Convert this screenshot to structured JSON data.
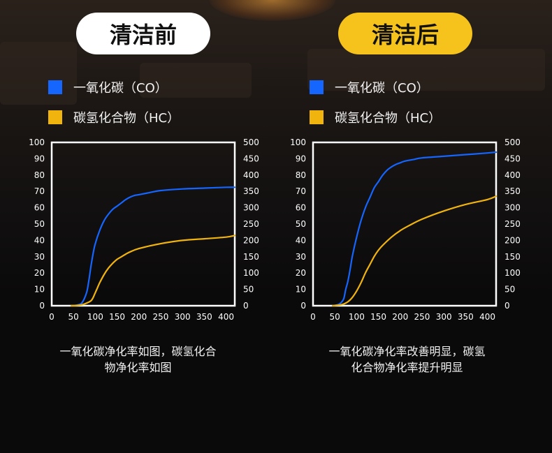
{
  "colors": {
    "co": "#1565ff",
    "hc": "#f1b40f",
    "before_pill": "#ffffff",
    "after_pill": "#f6c31d"
  },
  "panels": [
    {
      "badge": "清洁前",
      "legend": {
        "co": "一氧化碳（CO）",
        "hc": "碳氢化合物（HC）"
      },
      "caption": {
        "line1": "一氧化碳净化率如图，碳氢化合",
        "line2": "物净化率如图"
      }
    },
    {
      "badge": "清洁后",
      "legend": {
        "co": "一氧化碳（CO）",
        "hc": "碳氢化合物（HC）"
      },
      "caption": {
        "line1": "一氧化碳净化率改善明显，碳氢",
        "line2": "化合物净化率提升明显"
      }
    }
  ],
  "chart_data": [
    {
      "type": "line",
      "xlim": [
        0,
        420
      ],
      "x_ticks": [
        "0",
        "50",
        "100",
        "150",
        "200",
        "250",
        "300",
        "350",
        "400"
      ],
      "ylim": [
        0,
        100
      ],
      "y_ticks": [
        "0",
        "10",
        "20",
        "30",
        "40",
        "50",
        "60",
        "70",
        "80",
        "90",
        "100"
      ],
      "y2lim": [
        0,
        500
      ],
      "y2_ticks": [
        "0",
        "50",
        "100",
        "150",
        "200",
        "250",
        "300",
        "350",
        "400",
        "450",
        "500"
      ],
      "grid": false,
      "series": [
        {
          "name": "一氧化碳（CO）",
          "axis": "left",
          "x": [
            45,
            60,
            70,
            80,
            85,
            90,
            95,
            100,
            110,
            120,
            130,
            140,
            150,
            160,
            170,
            180,
            190,
            200,
            220,
            250,
            300,
            350,
            400,
            420
          ],
          "y": [
            0,
            0.5,
            2,
            8,
            15,
            24,
            32,
            38,
            46,
            52,
            56,
            59,
            61,
            63,
            65,
            66.5,
            67.5,
            68,
            69,
            70.5,
            71.5,
            72,
            72.5,
            72.5
          ]
        },
        {
          "name": "碳氢化合物（HC）",
          "axis": "right",
          "x": [
            45,
            60,
            70,
            80,
            90,
            95,
            100,
            105,
            110,
            120,
            130,
            140,
            150,
            160,
            170,
            180,
            200,
            250,
            300,
            350,
            400,
            420
          ],
          "y": [
            0,
            1,
            3,
            8,
            15,
            25,
            40,
            55,
            70,
            95,
            115,
            130,
            142,
            150,
            158,
            165,
            175,
            190,
            200,
            205,
            210,
            215
          ]
        }
      ]
    },
    {
      "type": "line",
      "xlim": [
        0,
        420
      ],
      "x_ticks": [
        "0",
        "50",
        "100",
        "150",
        "200",
        "250",
        "300",
        "350",
        "400"
      ],
      "ylim": [
        0,
        100
      ],
      "y_ticks": [
        "0",
        "10",
        "20",
        "30",
        "40",
        "50",
        "60",
        "70",
        "80",
        "90",
        "100"
      ],
      "y2lim": [
        0,
        500
      ],
      "y2_ticks": [
        "0",
        "50",
        "100",
        "150",
        "200",
        "250",
        "300",
        "350",
        "400",
        "450",
        "500"
      ],
      "grid": false,
      "series": [
        {
          "name": "一氧化碳（CO）",
          "axis": "left",
          "x": [
            45,
            60,
            70,
            75,
            80,
            85,
            90,
            100,
            110,
            120,
            130,
            140,
            150,
            160,
            170,
            180,
            190,
            200,
            210,
            230,
            250,
            300,
            350,
            400,
            420
          ],
          "y": [
            0,
            1,
            4,
            10,
            15,
            22,
            30,
            42,
            52,
            60,
            66,
            72,
            76,
            80,
            83,
            85,
            86.5,
            87.5,
            88.5,
            89.5,
            90.5,
            91.5,
            92.5,
            93.5,
            94
          ]
        },
        {
          "name": "碳氢化合物（HC）",
          "axis": "right",
          "x": [
            45,
            60,
            70,
            80,
            90,
            100,
            110,
            120,
            130,
            140,
            150,
            160,
            180,
            200,
            220,
            250,
            300,
            350,
            400,
            420
          ],
          "y": [
            0,
            2,
            5,
            12,
            25,
            45,
            70,
            100,
            125,
            150,
            170,
            185,
            210,
            230,
            245,
            265,
            290,
            310,
            325,
            335
          ]
        }
      ]
    }
  ]
}
